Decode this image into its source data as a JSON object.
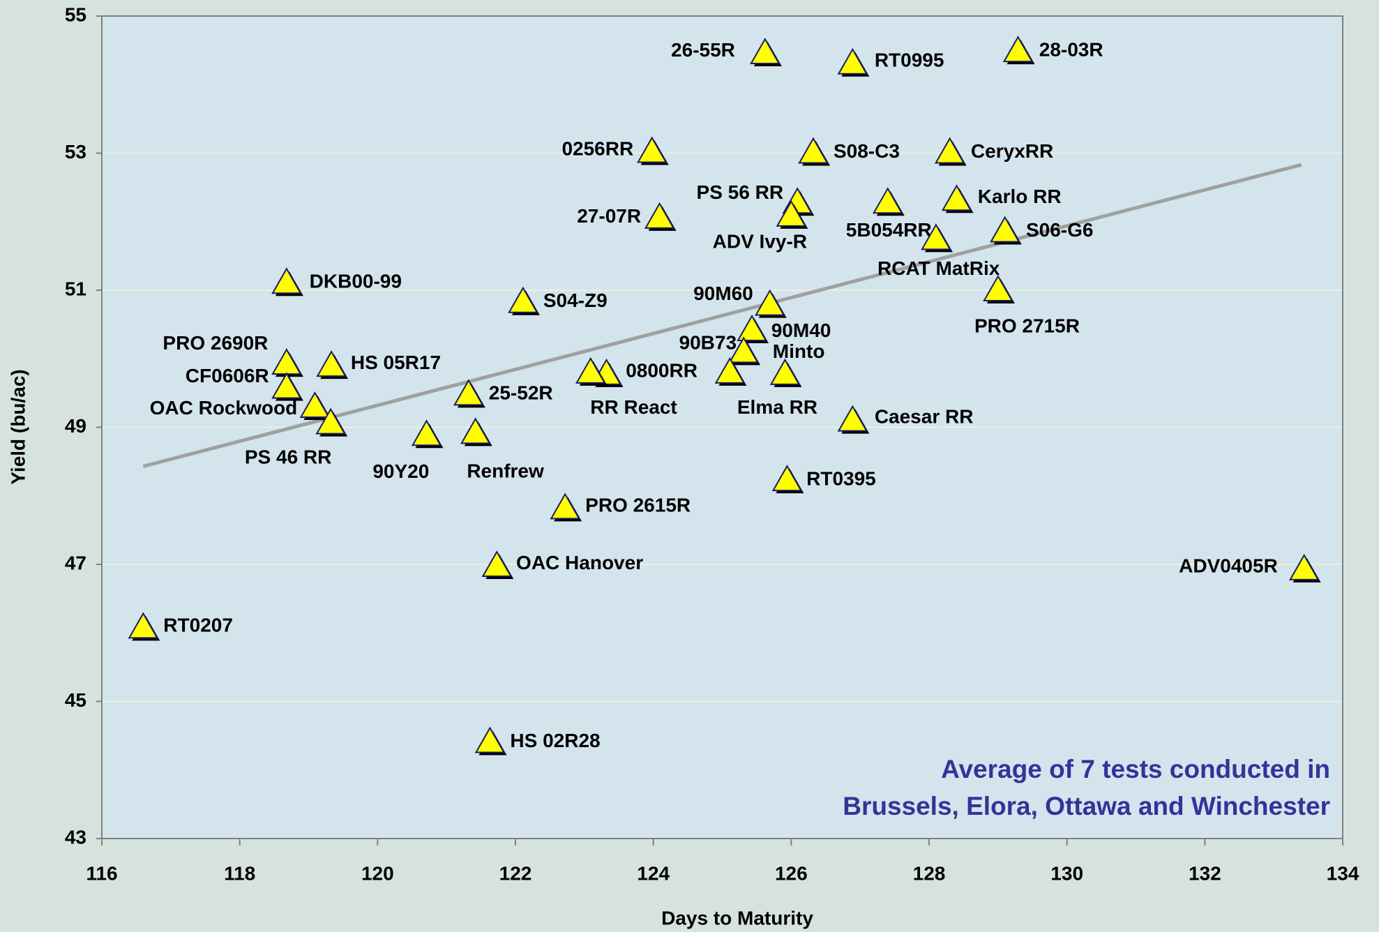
{
  "chart_data": {
    "type": "scatter",
    "x_label": "Days to Maturity",
    "y_label": "Yield (bu/ac)",
    "annotation": [
      "Average of 7 tests conducted in",
      "Brussels, Elora, Ottawa and Winchester"
    ],
    "color": "#ffff00",
    "labels": [
      "26-55R",
      "RT0995",
      "28-03R",
      "0256RR",
      "S08-C3",
      "CeryxRR",
      "PS 56 RR",
      "ADV Ivy-R",
      "27-07R",
      "5B054RR",
      "Karlo RR",
      "RCAT MatRix",
      "S06-G6",
      "DKB00-99",
      "S04-Z9",
      "90M60",
      "PRO 2715R",
      "90M40",
      "90B73",
      "Minto",
      "Elma RR",
      "0800RR",
      "RR React",
      "PRO 2690R",
      "HS 05R17",
      "CF0606R",
      "OAC Rockwood",
      "PS 46 RR",
      "25-52R",
      "90Y20",
      "Renfrew",
      "Caesar RR",
      "RT0395",
      "PRO 2615R",
      "OAC Hanover",
      "ADV0405R",
      "RT0207",
      "HS 02R28"
    ],
    "x": [
      125.62,
      126.89,
      129.29,
      123.98,
      126.32,
      128.3,
      126.09,
      126.0,
      124.09,
      127.4,
      128.4,
      128.1,
      129.1,
      118.68,
      122.11,
      125.69,
      129.0,
      125.43,
      125.31,
      125.91,
      125.11,
      123.32,
      123.09,
      118.68,
      119.33,
      118.68,
      119.09,
      119.32,
      121.32,
      120.71,
      121.42,
      126.89,
      125.94,
      122.72,
      121.73,
      133.44,
      116.6,
      121.63
    ],
    "values": [
      54.46,
      54.31,
      54.49,
      53.02,
      53.01,
      53.01,
      52.28,
      52.09,
      52.06,
      52.28,
      52.32,
      51.75,
      51.86,
      51.11,
      50.83,
      50.79,
      51.0,
      50.42,
      50.1,
      49.78,
      49.8,
      49.78,
      49.8,
      49.93,
      49.9,
      49.58,
      49.3,
      49.06,
      49.48,
      48.89,
      48.92,
      49.1,
      48.23,
      47.82,
      46.98,
      46.93,
      46.08,
      44.41
    ],
    "trendline": {
      "color": "#a0a0a0",
      "x": [
        116.6,
        133.4
      ],
      "y": [
        48.43,
        52.83
      ]
    },
    "xlim": [
      116,
      134
    ],
    "xticks": [
      116,
      118,
      120,
      122,
      124,
      126,
      128,
      130,
      132,
      134
    ],
    "ylim": [
      43,
      55
    ],
    "yticks": [
      43,
      45,
      47,
      49,
      51,
      53,
      55
    ],
    "grid": true
  }
}
